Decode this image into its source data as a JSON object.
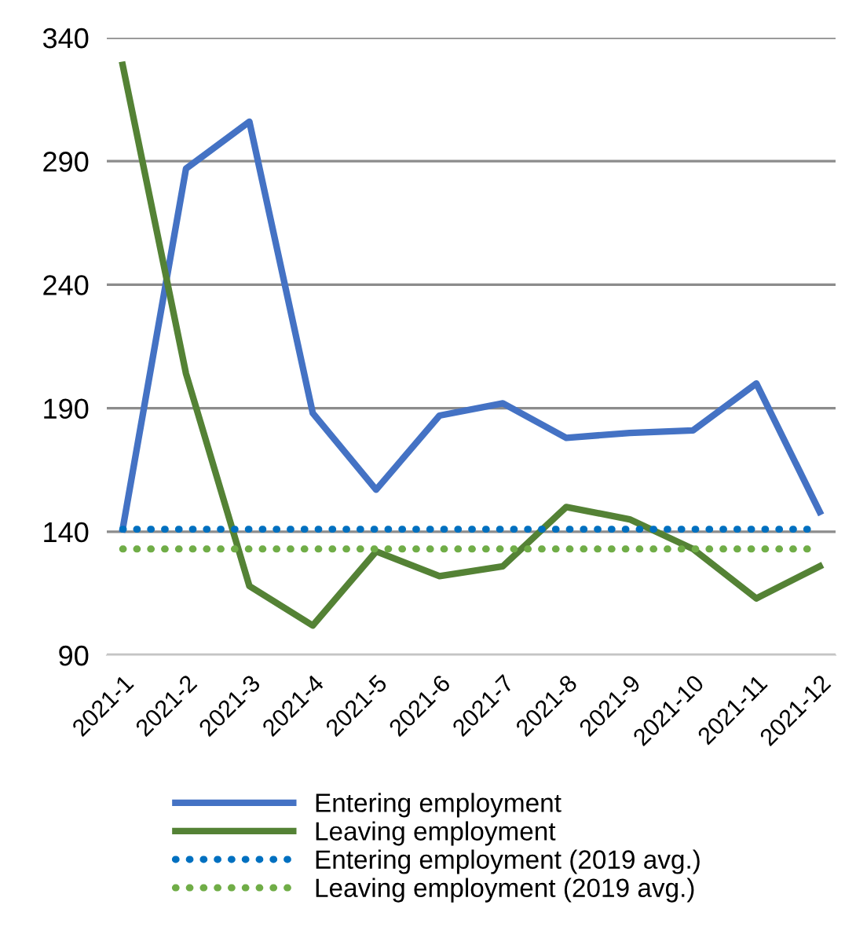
{
  "chart_data": {
    "type": "line",
    "categories": [
      "2021-1",
      "2021-2",
      "2021-3",
      "2021-4",
      "2021-5",
      "2021-6",
      "2021-7",
      "2021-8",
      "2021-9",
      "2021-10",
      "2021-11",
      "2021-12"
    ],
    "series": [
      {
        "name": "Entering employment",
        "color": "#4472c4",
        "line_style": "solid",
        "values": [
          141,
          287,
          306,
          188,
          157,
          187,
          192,
          178,
          180,
          181,
          200,
          148
        ]
      },
      {
        "name": "Leaving employment",
        "color": "#548235",
        "line_style": "solid",
        "values": [
          329,
          204,
          118,
          102,
          132,
          122,
          126,
          150,
          145,
          133,
          113,
          126
        ]
      },
      {
        "name": "Entering employment (2019 avg.)",
        "color": "#0070c0",
        "line_style": "dotted",
        "values": [
          141,
          141,
          141,
          141,
          141,
          141,
          141,
          141,
          141,
          141,
          141,
          141
        ]
      },
      {
        "name": "Leaving employment (2019 avg.)",
        "color": "#70ad47",
        "line_style": "dotted",
        "values": [
          133,
          133,
          133,
          133,
          133,
          133,
          133,
          133,
          133,
          133,
          133,
          133
        ]
      }
    ],
    "ylim": [
      90,
      340
    ],
    "yticks": [
      90,
      140,
      190,
      240,
      290,
      340
    ],
    "grid": "y",
    "legend": "bottom",
    "marker": "none"
  }
}
